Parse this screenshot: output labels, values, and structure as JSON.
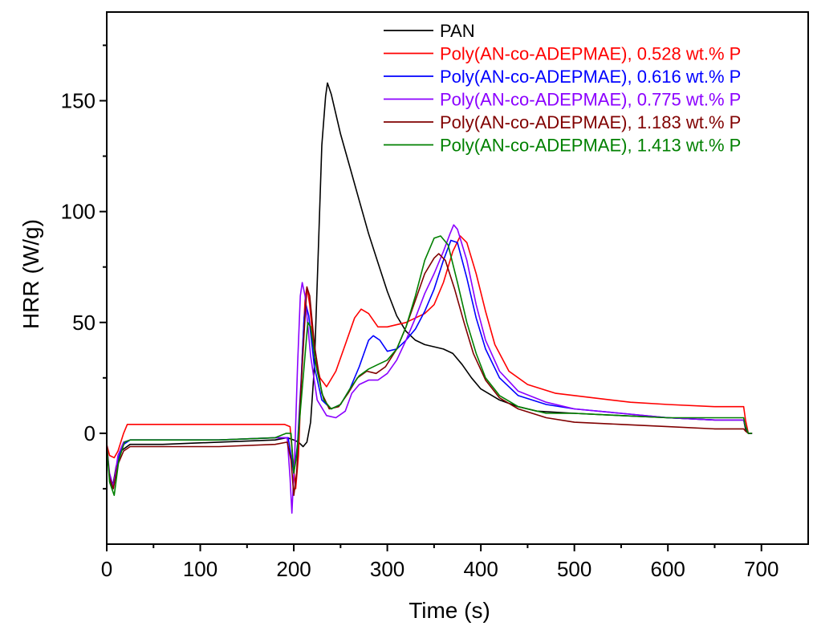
{
  "chart_data": {
    "type": "line",
    "title": "",
    "xlabel": "Time (s)",
    "ylabel": "HRR (W/g)",
    "xlim": [
      0,
      750
    ],
    "ylim": [
      -50,
      190
    ],
    "x_ticks": [
      0,
      100,
      200,
      300,
      400,
      500,
      600,
      700
    ],
    "y_ticks": [
      0,
      50,
      100,
      150
    ],
    "grid": false,
    "legend_position": "top-right",
    "series": [
      {
        "name": "PAN",
        "color": "#000000",
        "points": [
          [
            0,
            -5
          ],
          [
            3,
            -20
          ],
          [
            6,
            -25
          ],
          [
            10,
            -15
          ],
          [
            15,
            -8
          ],
          [
            25,
            -5
          ],
          [
            60,
            -5
          ],
          [
            120,
            -4
          ],
          [
            180,
            -3
          ],
          [
            193,
            -2
          ],
          [
            200,
            -3
          ],
          [
            205,
            -4
          ],
          [
            210,
            -6
          ],
          [
            214,
            -4
          ],
          [
            218,
            5
          ],
          [
            222,
            30
          ],
          [
            226,
            80
          ],
          [
            230,
            130
          ],
          [
            234,
            152
          ],
          [
            236,
            158
          ],
          [
            240,
            153
          ],
          [
            250,
            135
          ],
          [
            260,
            120
          ],
          [
            270,
            105
          ],
          [
            280,
            90
          ],
          [
            290,
            77
          ],
          [
            300,
            64
          ],
          [
            310,
            53
          ],
          [
            320,
            46
          ],
          [
            330,
            42
          ],
          [
            340,
            40
          ],
          [
            350,
            39
          ],
          [
            360,
            38
          ],
          [
            370,
            36
          ],
          [
            380,
            31
          ],
          [
            390,
            25
          ],
          [
            400,
            20
          ],
          [
            420,
            15
          ],
          [
            440,
            12
          ],
          [
            460,
            10
          ],
          [
            500,
            9
          ],
          [
            550,
            8
          ],
          [
            600,
            7
          ],
          [
            650,
            6
          ],
          [
            681,
            6
          ],
          [
            683,
            2
          ],
          [
            686,
            0
          ],
          [
            690,
            0
          ]
        ]
      },
      {
        "name": "Poly(AN-co-ADEPMAE), 0.528 wt.% P",
        "color": "#ff0000",
        "points": [
          [
            0,
            -5
          ],
          [
            3,
            -10
          ],
          [
            8,
            -11
          ],
          [
            12,
            -8
          ],
          [
            18,
            0
          ],
          [
            22,
            4
          ],
          [
            40,
            4
          ],
          [
            100,
            4
          ],
          [
            150,
            4
          ],
          [
            190,
            4
          ],
          [
            196,
            3
          ],
          [
            199,
            -12
          ],
          [
            202,
            -25
          ],
          [
            205,
            -10
          ],
          [
            209,
            35
          ],
          [
            212,
            60
          ],
          [
            214,
            66
          ],
          [
            217,
            58
          ],
          [
            222,
            35
          ],
          [
            228,
            25
          ],
          [
            235,
            21
          ],
          [
            245,
            28
          ],
          [
            255,
            40
          ],
          [
            265,
            52
          ],
          [
            272,
            56
          ],
          [
            280,
            54
          ],
          [
            290,
            48
          ],
          [
            300,
            48
          ],
          [
            320,
            50
          ],
          [
            340,
            54
          ],
          [
            350,
            58
          ],
          [
            360,
            68
          ],
          [
            370,
            82
          ],
          [
            378,
            89
          ],
          [
            385,
            86
          ],
          [
            395,
            72
          ],
          [
            405,
            55
          ],
          [
            415,
            40
          ],
          [
            430,
            28
          ],
          [
            450,
            22
          ],
          [
            480,
            18
          ],
          [
            520,
            16
          ],
          [
            560,
            14
          ],
          [
            600,
            13
          ],
          [
            650,
            12
          ],
          [
            681,
            12
          ],
          [
            683,
            6
          ],
          [
            686,
            0
          ],
          [
            690,
            0
          ]
        ]
      },
      {
        "name": "Poly(AN-co-ADEPMAE), 0.616 wt.% P",
        "color": "#0000ff",
        "points": [
          [
            0,
            -5
          ],
          [
            3,
            -20
          ],
          [
            7,
            -25
          ],
          [
            12,
            -12
          ],
          [
            18,
            -5
          ],
          [
            25,
            -3
          ],
          [
            60,
            -3
          ],
          [
            120,
            -3
          ],
          [
            180,
            -2
          ],
          [
            194,
            -2
          ],
          [
            197,
            -10
          ],
          [
            200,
            -18
          ],
          [
            204,
            -5
          ],
          [
            208,
            25
          ],
          [
            211,
            52
          ],
          [
            213,
            58
          ],
          [
            216,
            53
          ],
          [
            222,
            30
          ],
          [
            230,
            15
          ],
          [
            240,
            11
          ],
          [
            250,
            13
          ],
          [
            260,
            20
          ],
          [
            270,
            30
          ],
          [
            280,
            42
          ],
          [
            285,
            44
          ],
          [
            292,
            42
          ],
          [
            300,
            37
          ],
          [
            310,
            38
          ],
          [
            320,
            42
          ],
          [
            330,
            47
          ],
          [
            340,
            55
          ],
          [
            350,
            65
          ],
          [
            360,
            78
          ],
          [
            368,
            87
          ],
          [
            375,
            86
          ],
          [
            385,
            70
          ],
          [
            395,
            52
          ],
          [
            405,
            38
          ],
          [
            420,
            25
          ],
          [
            440,
            17
          ],
          [
            470,
            13
          ],
          [
            500,
            11
          ],
          [
            550,
            9
          ],
          [
            600,
            7
          ],
          [
            650,
            6
          ],
          [
            681,
            6
          ],
          [
            683,
            3
          ],
          [
            686,
            0
          ],
          [
            690,
            0
          ]
        ]
      },
      {
        "name": "Poly(AN-co-ADEPMAE), 0.775 wt.% P",
        "color": "#8b00ff",
        "points": [
          [
            0,
            -5
          ],
          [
            3,
            -18
          ],
          [
            7,
            -24
          ],
          [
            12,
            -10
          ],
          [
            18,
            -4
          ],
          [
            25,
            -3
          ],
          [
            60,
            -3
          ],
          [
            120,
            -3
          ],
          [
            180,
            -2
          ],
          [
            193,
            -2
          ],
          [
            196,
            -20
          ],
          [
            198,
            -36
          ],
          [
            201,
            -10
          ],
          [
            204,
            30
          ],
          [
            207,
            62
          ],
          [
            209,
            68
          ],
          [
            212,
            62
          ],
          [
            218,
            35
          ],
          [
            225,
            15
          ],
          [
            235,
            8
          ],
          [
            245,
            7
          ],
          [
            255,
            10
          ],
          [
            262,
            18
          ],
          [
            270,
            22
          ],
          [
            280,
            24
          ],
          [
            290,
            24
          ],
          [
            300,
            27
          ],
          [
            310,
            33
          ],
          [
            320,
            42
          ],
          [
            330,
            52
          ],
          [
            340,
            63
          ],
          [
            350,
            72
          ],
          [
            360,
            82
          ],
          [
            367,
            90
          ],
          [
            371,
            94
          ],
          [
            375,
            92
          ],
          [
            385,
            78
          ],
          [
            395,
            58
          ],
          [
            405,
            42
          ],
          [
            420,
            28
          ],
          [
            440,
            19
          ],
          [
            470,
            14
          ],
          [
            500,
            11
          ],
          [
            550,
            9
          ],
          [
            600,
            7
          ],
          [
            650,
            6
          ],
          [
            681,
            6
          ],
          [
            683,
            3
          ],
          [
            686,
            0
          ],
          [
            690,
            0
          ]
        ]
      },
      {
        "name": "Poly(AN-co-ADEPMAE), 1.183 wt.% P",
        "color": "#800000",
        "points": [
          [
            0,
            -5
          ],
          [
            3,
            -20
          ],
          [
            7,
            -25
          ],
          [
            12,
            -14
          ],
          [
            18,
            -8
          ],
          [
            25,
            -6
          ],
          [
            60,
            -6
          ],
          [
            120,
            -6
          ],
          [
            180,
            -5
          ],
          [
            193,
            -4
          ],
          [
            197,
            -12
          ],
          [
            200,
            -28
          ],
          [
            203,
            -18
          ],
          [
            207,
            15
          ],
          [
            211,
            45
          ],
          [
            214,
            66
          ],
          [
            217,
            62
          ],
          [
            222,
            40
          ],
          [
            230,
            18
          ],
          [
            238,
            11
          ],
          [
            248,
            12
          ],
          [
            258,
            18
          ],
          [
            268,
            25
          ],
          [
            278,
            28
          ],
          [
            288,
            27
          ],
          [
            298,
            30
          ],
          [
            310,
            38
          ],
          [
            320,
            48
          ],
          [
            330,
            60
          ],
          [
            340,
            72
          ],
          [
            350,
            79
          ],
          [
            355,
            81
          ],
          [
            362,
            78
          ],
          [
            372,
            65
          ],
          [
            382,
            50
          ],
          [
            392,
            36
          ],
          [
            405,
            24
          ],
          [
            420,
            16
          ],
          [
            440,
            11
          ],
          [
            470,
            7
          ],
          [
            500,
            5
          ],
          [
            550,
            4
          ],
          [
            600,
            3
          ],
          [
            650,
            2
          ],
          [
            681,
            2
          ],
          [
            683,
            1
          ],
          [
            686,
            0
          ],
          [
            690,
            0
          ]
        ]
      },
      {
        "name": "Poly(AN-co-ADEPMAE), 1.413 wt.% P",
        "color": "#008000",
        "points": [
          [
            0,
            -5
          ],
          [
            3,
            -22
          ],
          [
            8,
            -28
          ],
          [
            13,
            -12
          ],
          [
            19,
            -4
          ],
          [
            25,
            -3
          ],
          [
            60,
            -3
          ],
          [
            120,
            -3
          ],
          [
            180,
            -2
          ],
          [
            192,
            0
          ],
          [
            197,
            0
          ],
          [
            200,
            -18
          ],
          [
            203,
            -10
          ],
          [
            207,
            10
          ],
          [
            211,
            30
          ],
          [
            215,
            50
          ],
          [
            218,
            48
          ],
          [
            224,
            30
          ],
          [
            232,
            15
          ],
          [
            240,
            11
          ],
          [
            250,
            13
          ],
          [
            260,
            20
          ],
          [
            270,
            26
          ],
          [
            280,
            29
          ],
          [
            290,
            31
          ],
          [
            300,
            33
          ],
          [
            310,
            38
          ],
          [
            320,
            48
          ],
          [
            330,
            62
          ],
          [
            340,
            78
          ],
          [
            350,
            88
          ],
          [
            357,
            89
          ],
          [
            365,
            85
          ],
          [
            375,
            68
          ],
          [
            385,
            50
          ],
          [
            395,
            36
          ],
          [
            405,
            25
          ],
          [
            420,
            17
          ],
          [
            440,
            12
          ],
          [
            470,
            9
          ],
          [
            500,
            9
          ],
          [
            550,
            8
          ],
          [
            600,
            7
          ],
          [
            650,
            7
          ],
          [
            681,
            7
          ],
          [
            683,
            3
          ],
          [
            686,
            0
          ],
          [
            690,
            0
          ]
        ]
      }
    ]
  }
}
